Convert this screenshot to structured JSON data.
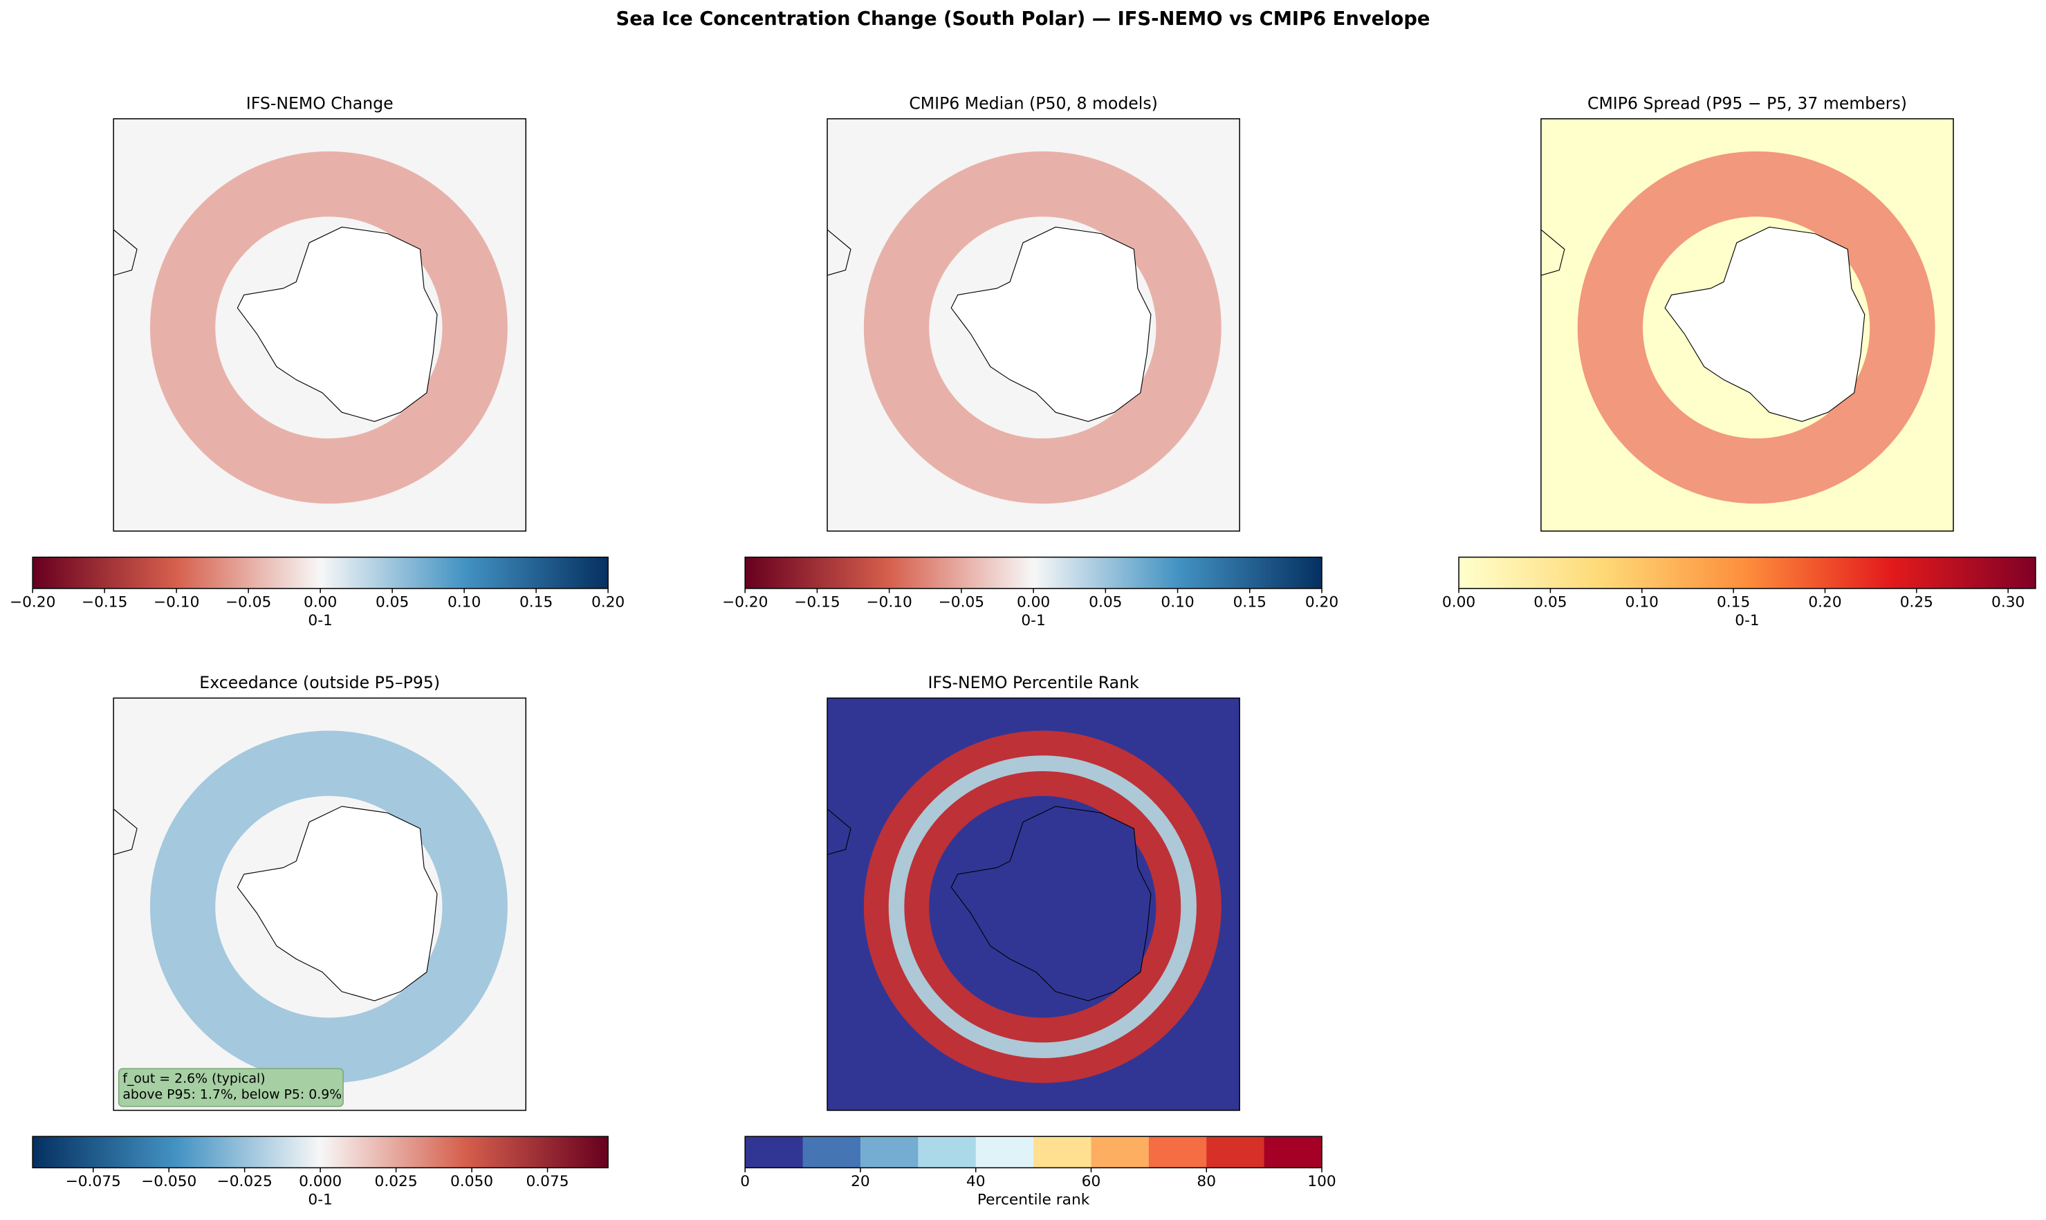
{
  "title": "Sea Ice Concentration Change (South Polar) — IFS-NEMO vs CMIP6 Envelope",
  "chart_data": [
    {
      "type": "map",
      "title": "IFS-NEMO Change",
      "map_background": "#f5f5f5",
      "colormap": [
        "#67001f",
        "#d6604d",
        "#f7f7f7",
        "#4393c3",
        "#053061"
      ],
      "colorbar_label": "0-1",
      "clim": [
        -0.2,
        0.2
      ],
      "cticks": [
        {
          "value": -0.2,
          "label": "−0.20"
        },
        {
          "value": -0.15,
          "label": "−0.15"
        },
        {
          "value": -0.1,
          "label": "−0.10"
        },
        {
          "value": -0.05,
          "label": "−0.05"
        },
        {
          "value": 0,
          "label": "0.00"
        },
        {
          "value": 0.05,
          "label": "0.05"
        },
        {
          "value": 0.1,
          "label": "0.10"
        },
        {
          "value": 0.15,
          "label": "0.15"
        },
        {
          "value": 0.2,
          "label": "0.20"
        }
      ]
    },
    {
      "type": "map",
      "title": "CMIP6 Median (P50, 8 models)",
      "map_background": "#f5f5f5",
      "colormap": [
        "#67001f",
        "#d6604d",
        "#f7f7f7",
        "#4393c3",
        "#053061"
      ],
      "colorbar_label": "0-1",
      "clim": [
        -0.2,
        0.2
      ],
      "cticks": [
        {
          "value": -0.2,
          "label": "−0.20"
        },
        {
          "value": -0.15,
          "label": "−0.15"
        },
        {
          "value": -0.1,
          "label": "−0.10"
        },
        {
          "value": -0.05,
          "label": "−0.05"
        },
        {
          "value": 0,
          "label": "0.00"
        },
        {
          "value": 0.05,
          "label": "0.05"
        },
        {
          "value": 0.1,
          "label": "0.10"
        },
        {
          "value": 0.15,
          "label": "0.15"
        },
        {
          "value": 0.2,
          "label": "0.20"
        }
      ]
    },
    {
      "type": "map",
      "title": "CMIP6 Spread (P95 − P5, 37 members)",
      "map_background": "#ffffcc",
      "colormap": [
        "#ffffcc",
        "#fed976",
        "#fd8d3c",
        "#e31a1c",
        "#800026"
      ],
      "colorbar_label": "0-1",
      "clim": [
        0,
        0.315
      ],
      "cticks": [
        {
          "value": 0,
          "label": "0.00"
        },
        {
          "value": 0.05,
          "label": "0.05"
        },
        {
          "value": 0.1,
          "label": "0.10"
        },
        {
          "value": 0.15,
          "label": "0.15"
        },
        {
          "value": 0.2,
          "label": "0.20"
        },
        {
          "value": 0.25,
          "label": "0.25"
        },
        {
          "value": 0.3,
          "label": "0.30"
        }
      ]
    },
    {
      "type": "map",
      "title": "Exceedance (outside P5–P95)",
      "map_background": "#f5f5f5",
      "colormap": [
        "#053061",
        "#4393c3",
        "#f7f7f7",
        "#d6604d",
        "#67001f"
      ],
      "colorbar_label": "0-1",
      "clim": [
        -0.095,
        0.095
      ],
      "cticks": [
        {
          "value": -0.075,
          "label": "−0.075"
        },
        {
          "value": -0.05,
          "label": "−0.050"
        },
        {
          "value": -0.025,
          "label": "−0.025"
        },
        {
          "value": 0,
          "label": "0.000"
        },
        {
          "value": 0.025,
          "label": "0.025"
        },
        {
          "value": 0.05,
          "label": "0.050"
        },
        {
          "value": 0.075,
          "label": "0.075"
        }
      ],
      "annotations": [
        "f_out = 2.6% (typical)",
        "above P95: 1.7%, below P5: 0.9%"
      ]
    },
    {
      "type": "map",
      "title": "IFS-NEMO Percentile Rank",
      "map_background": "#313695",
      "discrete": true,
      "colormap": [
        "#313695",
        "#4575b4",
        "#74add1",
        "#abd9e9",
        "#e0f3f8",
        "#fee090",
        "#fdae61",
        "#f46d43",
        "#d73027",
        "#a50026"
      ],
      "colorbar_label": "Percentile rank",
      "clim": [
        0,
        100
      ],
      "cticks": [
        0,
        20,
        40,
        60,
        80,
        100
      ]
    }
  ]
}
